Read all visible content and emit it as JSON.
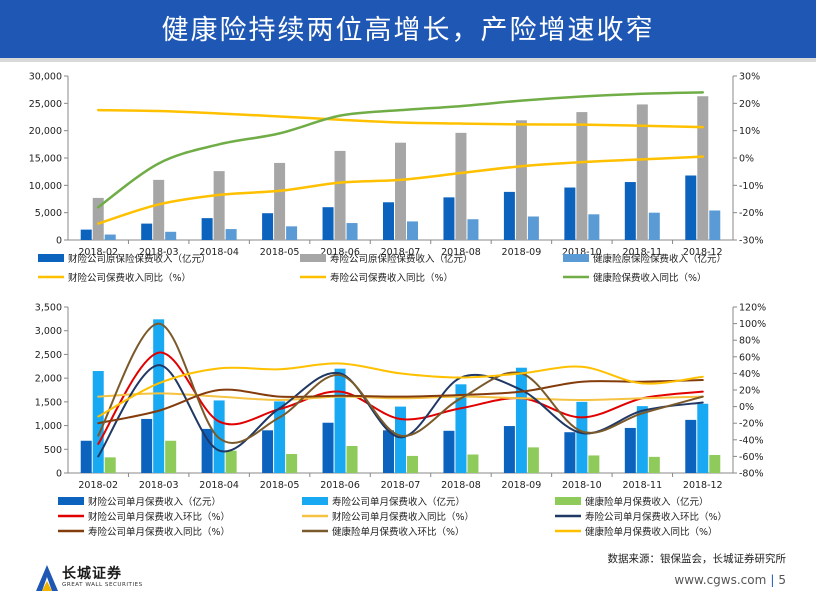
{
  "header": {
    "title": "健康险持续两位高增长，产险增速收窄"
  },
  "source": "数据来源：银保监会，长城证券研究所",
  "footer": {
    "url": "www.cgws.com",
    "sep": "|",
    "page": "5"
  },
  "logo": {
    "name_cn": "长城证券",
    "name_en": "GREAT WALL SECURITIES"
  },
  "colors": {
    "title_bg": "#1f57b4",
    "pc_bar": "#0b63be",
    "life_bar_top": "#a6a6a6",
    "health_bar_top": "#5b9bd5",
    "life_bar_bottom": "#19a9f2",
    "health_bar_bottom": "#8fcb5a",
    "pc_yoy_top": "#ffc000",
    "life_yoy_top": "#ffc000",
    "health_yoy_top": "#70ad47",
    "pc_mom": "#e00000",
    "pc_yoy": "#f5c242",
    "life_mom": "#203864",
    "life_yoy": "#843c0c",
    "health_mom": "#7a5a2a",
    "health_yoy": "#ffc000"
  },
  "chart_data": [
    {
      "type": "bar",
      "categories": [
        "2018-02",
        "2018-03",
        "2018-04",
        "2018-05",
        "2018-06",
        "2018-07",
        "2018-08",
        "2018-09",
        "2018-10",
        "2018-11",
        "2018-12"
      ],
      "ylim": [
        0,
        30000
      ],
      "y2lim": [
        -30,
        30
      ],
      "y_ticks": [
        "0",
        "5,000",
        "10,000",
        "15,000",
        "20,000",
        "25,000",
        "30,000"
      ],
      "y2_ticks": [
        "-30%",
        "-20%",
        "-10%",
        "0%",
        "10%",
        "20%",
        "30%"
      ],
      "series": [
        {
          "name": "财险公司原保险保费收入（亿元）",
          "kind": "bar",
          "axis": "left",
          "values": [
            1900,
            3000,
            4000,
            4900,
            6000,
            6900,
            7800,
            8800,
            9600,
            10600,
            11800
          ]
        },
        {
          "name": "寿险公司原保险保费收入（亿元）",
          "kind": "bar",
          "axis": "left",
          "values": [
            7700,
            11000,
            12600,
            14100,
            16300,
            17800,
            19600,
            21900,
            23400,
            24800,
            26300
          ]
        },
        {
          "name": "健康险原保险保费收入（亿元）",
          "kind": "bar",
          "axis": "left",
          "values": [
            1000,
            1500,
            2000,
            2500,
            3100,
            3400,
            3800,
            4300,
            4700,
            5000,
            5400
          ]
        },
        {
          "name": "财险公司保费收入同比（%）",
          "kind": "line",
          "axis": "right",
          "values": [
            17.5,
            17.2,
            16.3,
            15.2,
            14,
            13,
            12.6,
            12.3,
            12.2,
            11.8,
            11.3
          ]
        },
        {
          "name": "寿险公司保费收入同比（%）",
          "kind": "line",
          "axis": "right",
          "values": [
            -24,
            -17,
            -13.5,
            -12,
            -9,
            -8,
            -5.5,
            -3,
            -1.5,
            -0.5,
            0.5
          ]
        },
        {
          "name": "健康险保费收入同比（%）",
          "kind": "line",
          "axis": "right",
          "values": [
            -18,
            -2,
            5,
            9,
            15.5,
            17.5,
            19,
            21,
            22.5,
            23.5,
            24
          ]
        }
      ]
    },
    {
      "type": "bar",
      "categories": [
        "2018-02",
        "2018-03",
        "2018-04",
        "2018-05",
        "2018-06",
        "2018-07",
        "2018-08",
        "2018-09",
        "2018-10",
        "2018-11",
        "2018-12"
      ],
      "ylim": [
        0,
        3500
      ],
      "y2lim": [
        -80,
        120
      ],
      "y_ticks": [
        "0",
        "500",
        "1,000",
        "1,500",
        "2,000",
        "2,500",
        "3,000",
        "3,500"
      ],
      "y2_ticks": [
        "-80%",
        "-60%",
        "-40%",
        "-20%",
        "0%",
        "20%",
        "40%",
        "60%",
        "80%",
        "100%",
        "120%"
      ],
      "series": [
        {
          "name": "财险公司单月保费收入（亿元）",
          "kind": "bar",
          "axis": "left",
          "values": [
            680,
            1140,
            930,
            900,
            1060,
            900,
            890,
            990,
            860,
            950,
            1120
          ]
        },
        {
          "name": "寿险公司单月保费收入（亿元）",
          "kind": "bar",
          "axis": "left",
          "values": [
            2150,
            3240,
            1530,
            1510,
            2200,
            1400,
            1870,
            2220,
            1500,
            1410,
            1460
          ]
        },
        {
          "name": "健康险单月保费收入（亿元）",
          "kind": "bar",
          "axis": "left",
          "values": [
            330,
            680,
            470,
            400,
            570,
            360,
            390,
            540,
            370,
            340,
            380
          ]
        },
        {
          "name": "财险公司单月保费收入环比（%）",
          "kind": "line",
          "axis": "right",
          "values": [
            -45,
            65,
            -18,
            -3,
            18,
            -15,
            -2,
            10,
            -13,
            10,
            18
          ]
        },
        {
          "name": "财险公司单月保费收入同比（%）",
          "kind": "line",
          "axis": "right",
          "values": [
            12,
            16,
            12,
            8,
            12,
            10,
            12,
            10,
            8,
            10,
            12
          ]
        },
        {
          "name": "寿险公司单月保费收入环比（%）",
          "kind": "line",
          "axis": "right",
          "values": [
            -60,
            50,
            -53,
            -2,
            40,
            -37,
            35,
            20,
            -32,
            -5,
            5
          ]
        },
        {
          "name": "寿险公司单月保费收入同比（%）",
          "kind": "line",
          "axis": "right",
          "values": [
            -20,
            -5,
            20,
            12,
            13,
            12,
            14,
            18,
            30,
            30,
            32
          ]
        },
        {
          "name": "健康险单月保费收入环比（%）",
          "kind": "line",
          "axis": "right",
          "values": [
            -35,
            100,
            -38,
            -13,
            38,
            -35,
            10,
            40,
            -30,
            -8,
            12
          ]
        },
        {
          "name": "健康险单月保费收入同比（%）",
          "kind": "line",
          "axis": "right",
          "values": [
            -12,
            28,
            46,
            45,
            52,
            40,
            35,
            40,
            48,
            28,
            36
          ]
        }
      ]
    }
  ]
}
